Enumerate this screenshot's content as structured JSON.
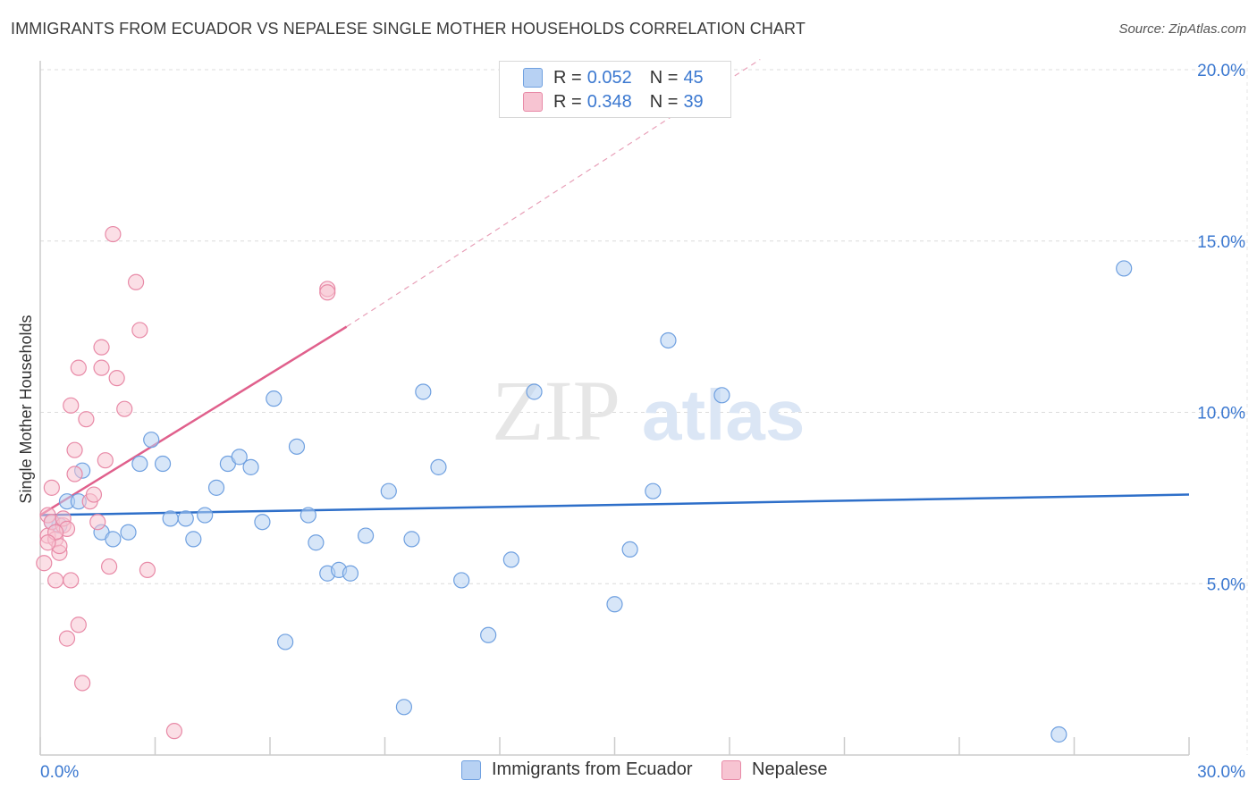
{
  "header": {
    "title": "IMMIGRANTS FROM ECUADOR VS NEPALESE SINGLE MOTHER HOUSEHOLDS CORRELATION CHART",
    "source": "Source: ZipAtlas.com"
  },
  "watermark": {
    "part1": "ZIP",
    "part2": "atlas"
  },
  "legend": {
    "rows": [
      {
        "r_label": "R = ",
        "r_value": "0.052",
        "n_label": "N = ",
        "n_value": "45",
        "color": "#a9c8f0"
      },
      {
        "r_label": "R = ",
        "r_value": "0.348",
        "n_label": "N = ",
        "n_value": "39",
        "color": "#f5b8c8"
      }
    ]
  },
  "bottom_legend": {
    "items": [
      {
        "label": "Immigrants from Ecuador",
        "color": "#a9c8f0"
      },
      {
        "label": "Nepalese",
        "color": "#f5b8c8"
      }
    ]
  },
  "chart_data": {
    "type": "scatter",
    "title": "IMMIGRANTS FROM ECUADOR VS NEPALESE SINGLE MOTHER HOUSEHOLDS CORRELATION CHART",
    "xlabel": "",
    "ylabel": "Single Mother Households",
    "xlim": [
      0,
      30
    ],
    "ylim": [
      0,
      20
    ],
    "x_tick_labels": [
      "0.0%",
      "30.0%"
    ],
    "y_ticks": [
      5,
      10,
      15,
      20
    ],
    "y_tick_labels": [
      "5.0%",
      "10.0%",
      "15.0%",
      "20.0%"
    ],
    "grid": true,
    "series": [
      {
        "name": "Immigrants from Ecuador",
        "color": "#6fa0e0",
        "fill": "#b7d1f3",
        "trend": {
          "x": [
            0,
            30
          ],
          "y": [
            7.0,
            7.6
          ],
          "color": "#2e6fc9"
        },
        "points": [
          [
            0.5,
            6.7
          ],
          [
            0.7,
            7.4
          ],
          [
            1.0,
            7.4
          ],
          [
            1.1,
            8.3
          ],
          [
            1.6,
            6.5
          ],
          [
            1.9,
            6.3
          ],
          [
            2.3,
            6.5
          ],
          [
            2.6,
            8.5
          ],
          [
            2.9,
            9.2
          ],
          [
            3.2,
            8.5
          ],
          [
            3.4,
            6.9
          ],
          [
            3.8,
            6.9
          ],
          [
            4.0,
            6.3
          ],
          [
            4.3,
            7.0
          ],
          [
            4.6,
            7.8
          ],
          [
            4.9,
            8.5
          ],
          [
            5.2,
            8.7
          ],
          [
            5.5,
            8.4
          ],
          [
            5.8,
            6.8
          ],
          [
            6.1,
            10.4
          ],
          [
            6.4,
            3.3
          ],
          [
            6.7,
            9.0
          ],
          [
            7.0,
            7.0
          ],
          [
            7.2,
            6.2
          ],
          [
            7.5,
            5.3
          ],
          [
            7.8,
            5.4
          ],
          [
            8.1,
            5.3
          ],
          [
            8.5,
            6.4
          ],
          [
            9.1,
            7.7
          ],
          [
            9.5,
            1.4
          ],
          [
            9.7,
            6.3
          ],
          [
            10.0,
            10.6
          ],
          [
            10.4,
            8.4
          ],
          [
            11.0,
            5.1
          ],
          [
            11.7,
            3.5
          ],
          [
            12.3,
            5.7
          ],
          [
            12.9,
            10.6
          ],
          [
            15.0,
            4.4
          ],
          [
            15.4,
            6.0
          ],
          [
            16.0,
            7.7
          ],
          [
            16.4,
            12.1
          ],
          [
            17.8,
            10.5
          ],
          [
            26.6,
            0.6
          ],
          [
            28.3,
            14.2
          ],
          [
            0.3,
            6.8
          ]
        ]
      },
      {
        "name": "Nepalese",
        "color": "#e88aa7",
        "fill": "#f7c4d2",
        "trend": {
          "x": [
            0,
            8.0
          ],
          "y": [
            7.0,
            12.5
          ],
          "color": "#e0608c"
        },
        "trend_dashed": {
          "x": [
            8.0,
            18.8
          ],
          "y": [
            12.5,
            20.3
          ],
          "color": "#e8a0b8"
        },
        "points": [
          [
            0.1,
            5.6
          ],
          [
            0.2,
            6.4
          ],
          [
            0.2,
            7.0
          ],
          [
            0.3,
            7.8
          ],
          [
            0.3,
            6.8
          ],
          [
            0.4,
            6.3
          ],
          [
            0.4,
            5.1
          ],
          [
            0.5,
            5.9
          ],
          [
            0.5,
            6.1
          ],
          [
            0.6,
            6.7
          ],
          [
            0.6,
            6.9
          ],
          [
            0.7,
            6.6
          ],
          [
            0.7,
            3.4
          ],
          [
            0.8,
            10.2
          ],
          [
            0.8,
            5.1
          ],
          [
            0.9,
            8.2
          ],
          [
            0.9,
            8.9
          ],
          [
            1.0,
            11.3
          ],
          [
            1.0,
            3.8
          ],
          [
            1.1,
            2.1
          ],
          [
            1.2,
            9.8
          ],
          [
            1.3,
            7.4
          ],
          [
            1.4,
            7.6
          ],
          [
            1.5,
            6.8
          ],
          [
            1.6,
            11.9
          ],
          [
            1.6,
            11.3
          ],
          [
            1.7,
            8.6
          ],
          [
            1.8,
            5.5
          ],
          [
            1.9,
            15.2
          ],
          [
            2.0,
            11.0
          ],
          [
            2.2,
            10.1
          ],
          [
            2.5,
            13.8
          ],
          [
            2.6,
            12.4
          ],
          [
            2.8,
            5.4
          ],
          [
            3.5,
            0.7
          ],
          [
            7.5,
            13.6
          ],
          [
            7.5,
            13.5
          ],
          [
            0.4,
            6.5
          ],
          [
            0.2,
            6.2
          ]
        ]
      }
    ]
  }
}
